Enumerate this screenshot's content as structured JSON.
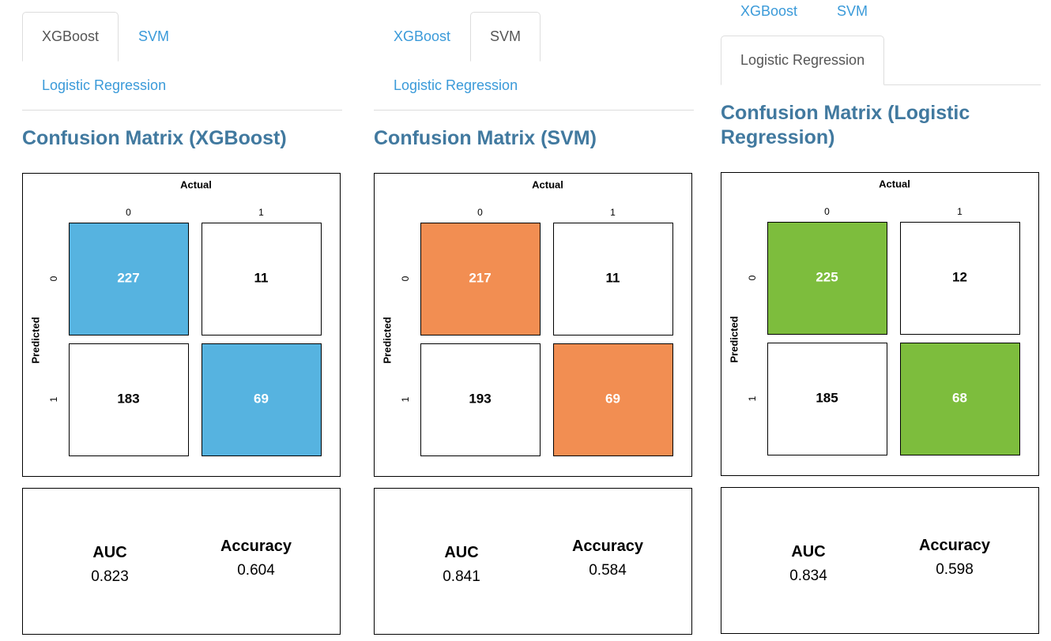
{
  "panels": [
    {
      "tabs": [
        "XGBoost",
        "SVM",
        "Logistic Regression"
      ],
      "active_tab": 0,
      "title": "Confusion Matrix (XGBoost)",
      "matrix": {
        "col_header": "Actual",
        "row_header": "Predicted",
        "col_labels": [
          "0",
          "1"
        ],
        "row_labels": [
          "0",
          "1"
        ],
        "cells": [
          [
            227,
            11
          ],
          [
            183,
            69
          ]
        ],
        "color": "#56b3e0"
      },
      "metrics": {
        "labels": [
          "AUC",
          "Accuracy"
        ],
        "values": [
          0.823,
          0.604
        ]
      }
    },
    {
      "tabs": [
        "XGBoost",
        "SVM",
        "Logistic Regression"
      ],
      "active_tab": 1,
      "title": "Confusion Matrix (SVM)",
      "matrix": {
        "col_header": "Actual",
        "row_header": "Predicted",
        "col_labels": [
          "0",
          "1"
        ],
        "row_labels": [
          "0",
          "1"
        ],
        "cells": [
          [
            217,
            11
          ],
          [
            193,
            69
          ]
        ],
        "color": "#f28e52"
      },
      "metrics": {
        "labels": [
          "AUC",
          "Accuracy"
        ],
        "values": [
          0.841,
          0.584
        ]
      }
    },
    {
      "tabs": [
        "XGBoost",
        "SVM",
        "Logistic Regression"
      ],
      "active_tab": 2,
      "title": "Confusion Matrix (Logistic Regression)",
      "matrix": {
        "col_header": "Actual",
        "row_header": "Predicted",
        "col_labels": [
          "0",
          "1"
        ],
        "row_labels": [
          "0",
          "1"
        ],
        "cells": [
          [
            225,
            12
          ],
          [
            185,
            68
          ]
        ],
        "color": "#7dbd3d"
      },
      "metrics": {
        "labels": [
          "AUC",
          "Accuracy"
        ],
        "values": [
          0.834,
          0.598
        ]
      }
    }
  ]
}
